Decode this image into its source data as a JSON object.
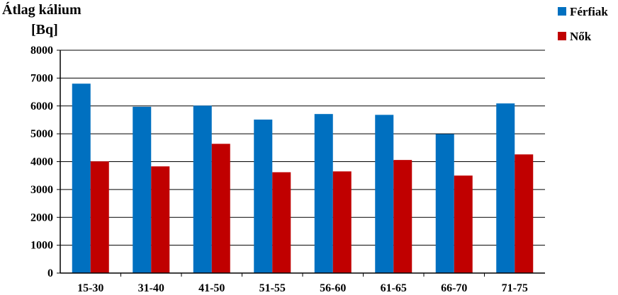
{
  "chart_data": {
    "type": "bar",
    "ylabel_line1": "Átlag kálium",
    "ylabel_line2": "[Bq]",
    "categories": [
      "15-30",
      "31-40",
      "41-50",
      "51-55",
      "56-60",
      "61-65",
      "66-70",
      "71-75"
    ],
    "series": [
      {
        "name": "Férfiak",
        "color": "#0070C0",
        "values": [
          6800,
          5970,
          6010,
          5510,
          5710,
          5680,
          4990,
          6090
        ]
      },
      {
        "name": "Nők",
        "color": "#C00000",
        "values": [
          4010,
          3830,
          4640,
          3620,
          3650,
          4060,
          3500,
          4260
        ]
      }
    ],
    "ylim": [
      0,
      8000
    ],
    "yticks": [
      0,
      1000,
      2000,
      3000,
      4000,
      5000,
      6000,
      7000,
      8000
    ],
    "grid": true,
    "legend_position": "top-right"
  }
}
